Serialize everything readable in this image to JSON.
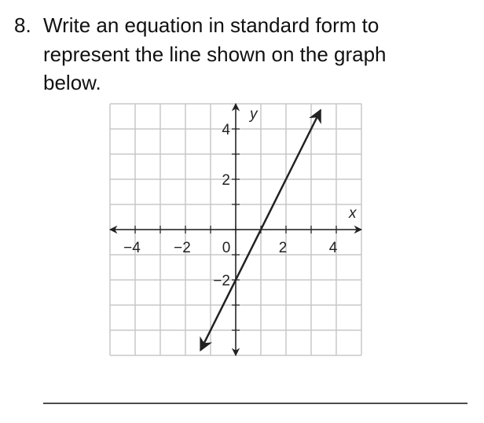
{
  "question": {
    "number": "8.",
    "lines": [
      "Write an equation in standard form to",
      "represent the line shown on the graph",
      "below."
    ]
  },
  "chart_data": {
    "type": "line",
    "x_label": "x",
    "y_label": "y",
    "x": [
      -1.4,
      3.375
    ],
    "values": [
      -4.8,
      4.75
    ],
    "color": "#222222",
    "xlim": [
      -5,
      5
    ],
    "ylim": [
      -5,
      5
    ],
    "xticks": [
      {
        "value": -4,
        "label": "−4"
      },
      {
        "value": -2,
        "label": "−2"
      },
      0,
      2,
      4
    ],
    "yticks": [
      {
        "value": -2,
        "label": "−2"
      },
      2,
      4
    ],
    "xminor": [
      -5,
      -4,
      -3,
      -2,
      -1,
      0,
      1,
      2,
      3,
      4,
      5
    ],
    "yminor": [
      -5,
      -4,
      -3,
      -2,
      -1,
      0,
      1,
      2,
      3,
      4,
      5
    ],
    "grid": true
  }
}
